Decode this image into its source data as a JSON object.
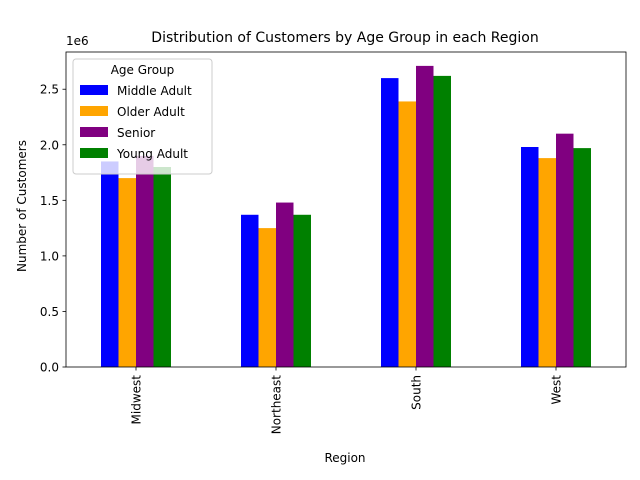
{
  "chart_data": {
    "type": "bar",
    "title": "Distribution of Customers by Age Group in each Region",
    "xlabel": "Region",
    "ylabel": "Number of Customers",
    "y_scale_label": "1e6",
    "categories": [
      "Midwest",
      "Northeast",
      "South",
      "West"
    ],
    "ylim": [
      0,
      2835000
    ],
    "yticks": [
      0,
      500000,
      1000000,
      1500000,
      2000000,
      2500000
    ],
    "ytick_labels": [
      "0.0",
      "0.5",
      "1.0",
      "1.5",
      "2.0",
      "2.5"
    ],
    "grid": false,
    "legend": {
      "title": "Age Group",
      "placement": "top-left"
    },
    "series": [
      {
        "name": "Middle Adult",
        "color": "#0000ff",
        "values": [
          1850000,
          1370000,
          2600000,
          1980000
        ]
      },
      {
        "name": "Older Adult",
        "color": "#ffa500",
        "values": [
          1700000,
          1250000,
          2390000,
          1880000
        ]
      },
      {
        "name": "Senior",
        "color": "#800080",
        "values": [
          1900000,
          1480000,
          2710000,
          2100000
        ]
      },
      {
        "name": "Young Adult",
        "color": "#008000",
        "values": [
          1800000,
          1370000,
          2620000,
          1970000
        ]
      }
    ]
  }
}
